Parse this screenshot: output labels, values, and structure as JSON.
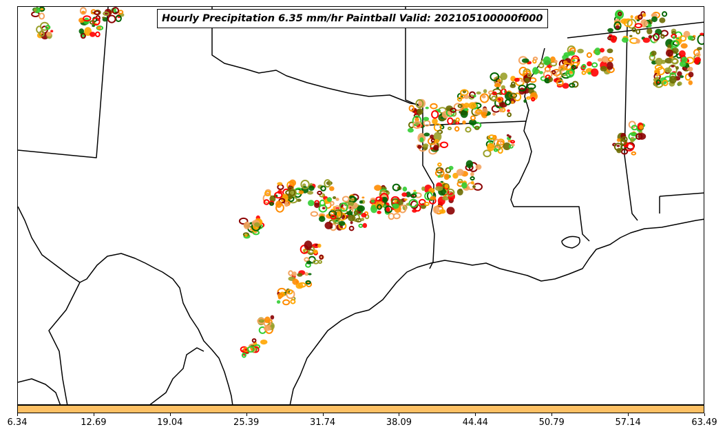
{
  "map": {
    "title": "Hourly Precipitation 6.35 mm/hr Paintball Valid: 202105100000f000",
    "colorbar_color": "#FDC064",
    "colorbar_ticks": [
      "6.34",
      "12.69",
      "19.04",
      "25.39",
      "31.74",
      "38.09",
      "44.44",
      "50.79",
      "57.14",
      "63.49"
    ],
    "member_colors": [
      "#FF8C00",
      "#FF0000",
      "#32CD32",
      "#006400",
      "#8B0000",
      "#9AA02A",
      "#6B6B00",
      "#F4A460",
      "#FFA500"
    ]
  }
}
